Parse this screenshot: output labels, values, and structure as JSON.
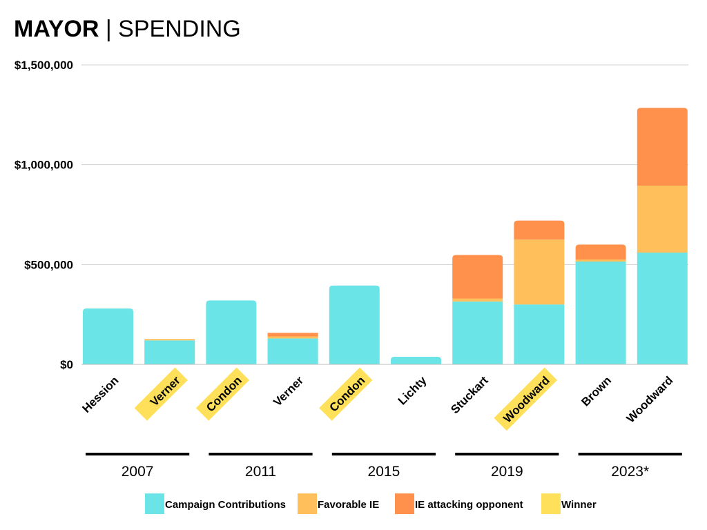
{
  "title": {
    "bold": "MAYOR",
    "separator": " | ",
    "rest": "SPENDING"
  },
  "colors": {
    "campaign": "#6ae4e6",
    "favorable": "#ffbf5a",
    "attacking": "#ff914d",
    "winner": "#ffe05a",
    "grid": "#d0d0d0",
    "baseline": "#000000"
  },
  "chart_data": {
    "type": "bar",
    "stacked": true,
    "title": "MAYOR | SPENDING",
    "ylim": [
      0,
      1500000
    ],
    "yticks": [
      {
        "value": 0,
        "label": "$0"
      },
      {
        "value": 500000,
        "label": "$500,000"
      },
      {
        "value": 1000000,
        "label": "$1,000,000"
      },
      {
        "value": 1500000,
        "label": "$1,500,000"
      }
    ],
    "categories": [
      "Hession",
      "Verner",
      "Condon",
      "Verner",
      "Condon",
      "Lichty",
      "Stuckart",
      "Woodward",
      "Brown",
      "Woodward"
    ],
    "winners": [
      false,
      true,
      true,
      false,
      true,
      false,
      false,
      true,
      false,
      false
    ],
    "series": [
      {
        "name": "Campaign Contributions",
        "key": "campaign",
        "values": [
          280000,
          120000,
          320000,
          130000,
          395000,
          38000,
          315000,
          300000,
          515000,
          560000
        ]
      },
      {
        "name": "Favorable IE",
        "key": "favorable",
        "values": [
          0,
          7000,
          0,
          10000,
          0,
          0,
          15000,
          325000,
          10000,
          335000
        ]
      },
      {
        "name": "IE attacking opponent",
        "key": "attacking",
        "values": [
          0,
          0,
          0,
          18000,
          0,
          0,
          218000,
          95000,
          75000,
          390000
        ]
      }
    ],
    "groups": [
      {
        "year": "2007",
        "members": [
          0,
          1
        ]
      },
      {
        "year": "2011",
        "members": [
          2,
          3
        ]
      },
      {
        "year": "2015",
        "members": [
          4,
          5
        ]
      },
      {
        "year": "2019",
        "members": [
          6,
          7
        ]
      },
      {
        "year": "2023*",
        "members": [
          8,
          9
        ]
      }
    ],
    "legend": [
      {
        "label": "Campaign Contributions",
        "key": "campaign"
      },
      {
        "label": "Favorable IE",
        "key": "favorable"
      },
      {
        "label": "IE attacking opponent",
        "key": "attacking"
      },
      {
        "label": "Winner",
        "key": "winner"
      }
    ],
    "legend_position": "bottom"
  }
}
